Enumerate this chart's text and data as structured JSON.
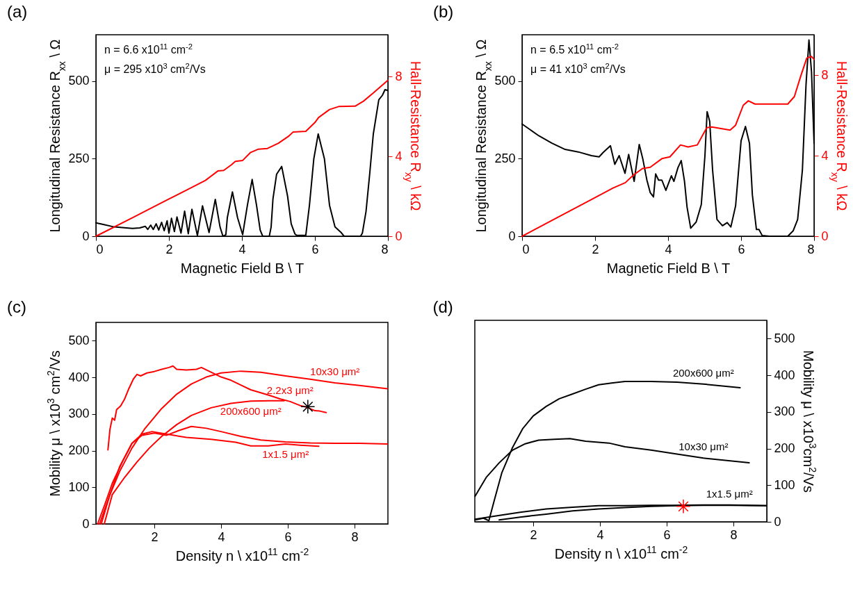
{
  "chart_data": [
    {
      "type": "line",
      "title": "(a)",
      "xlabel": "Magnetic Field B \\ T",
      "xlim": [
        0,
        8
      ],
      "xticks": [
        0,
        2,
        4,
        6,
        8
      ],
      "ylabel": "Longitudinal Resistance R$_{xx}$ \\ Ω",
      "ylim": [
        0,
        650
      ],
      "yticks": [
        0,
        250,
        500
      ],
      "y2label": "Hall-Resistance R$_{xy}$ \\ kΩ",
      "y2lim": [
        0,
        10.1
      ],
      "y2ticks": [
        0,
        4,
        8
      ],
      "annotations": [
        "n = 6.6 x10$^{11}$ cm$^{-2}$",
        "μ = 295 x10$^{3}$ cm$^{2}$/Vs"
      ],
      "series": [
        {
          "color": "#000000",
          "x": [
            0,
            0.2,
            0.5,
            1.0,
            1.2,
            1.35,
            1.42,
            1.5,
            1.57,
            1.65,
            1.72,
            1.8,
            1.87,
            1.95,
            2.0,
            2.07,
            2.15,
            2.22,
            2.33,
            2.43,
            2.53,
            2.63,
            2.78,
            2.92,
            3.1,
            3.27,
            3.4,
            3.48,
            3.56,
            3.6,
            3.74,
            3.88,
            4.02,
            4.15,
            4.28,
            4.4,
            4.5,
            4.57,
            4.75,
            4.8,
            4.85,
            4.95,
            5.09,
            5.25,
            5.35,
            5.45,
            5.5,
            5.75,
            5.85,
            5.97,
            6.09,
            6.26,
            6.4,
            6.55,
            6.71,
            6.8,
            7.25,
            7.3,
            7.4,
            7.5,
            7.6,
            7.75,
            7.85,
            7.92,
            8.0
          ],
          "values": [
            43,
            38,
            30,
            25,
            27,
            32,
            22,
            36,
            22,
            40,
            20,
            45,
            18,
            50,
            10,
            58,
            15,
            62,
            10,
            81,
            8,
            87,
            2,
            98,
            12,
            119,
            30,
            0,
            5,
            60,
            143,
            60,
            5,
            100,
            183,
            100,
            20,
            0,
            0,
            30,
            120,
            200,
            225,
            130,
            40,
            8,
            3,
            3,
            100,
            250,
            330,
            250,
            100,
            30,
            13,
            0,
            0,
            10,
            80,
            200,
            330,
            440,
            455,
            473,
            470
          ]
        },
        {
          "color": "#ff0000",
          "axis": "y2",
          "x": [
            0,
            1,
            2,
            2.5,
            3.0,
            3.34,
            3.5,
            3.71,
            3.82,
            4.02,
            4.23,
            4.44,
            4.7,
            5.0,
            5.27,
            5.4,
            5.75,
            6.0,
            6.1,
            6.4,
            6.65,
            7.1,
            7.33,
            7.6,
            8
          ],
          "values": [
            0,
            0.93,
            1.87,
            2.33,
            2.8,
            3.27,
            3.3,
            3.58,
            3.75,
            3.8,
            4.19,
            4.36,
            4.4,
            4.66,
            5.0,
            5.22,
            5.26,
            5.7,
            5.95,
            6.35,
            6.5,
            6.52,
            6.77,
            7.18,
            7.82
          ]
        }
      ]
    },
    {
      "type": "line",
      "title": "(b)",
      "xlabel": "Magnetic Field B \\ T",
      "xlim": [
        0,
        8
      ],
      "xticks": [
        0,
        2,
        4,
        6,
        8
      ],
      "ylabel": "Longitudinal Resistance R$_{xx}$ \\ Ω",
      "ylim": [
        0,
        650
      ],
      "yticks": [
        0,
        250,
        500
      ],
      "y2label": "Hall-Resistance R$_{xy}$ \\ kΩ",
      "y2lim": [
        0,
        10
      ],
      "y2ticks": [
        0,
        4,
        8
      ],
      "annotations": [
        "n = 6.5 x10$^{11}$ cm$^{-2}$",
        "μ = 41 x10$^{3}$ cm$^{2}$/Vs"
      ],
      "series": [
        {
          "color": "#000000",
          "x": [
            0,
            0.46,
            0.82,
            1.18,
            1.54,
            1.9,
            2.11,
            2.22,
            2.42,
            2.54,
            2.66,
            2.82,
            2.92,
            3.07,
            3.21,
            3.31,
            3.42,
            3.51,
            3.6,
            3.66,
            3.74,
            3.83,
            3.94,
            4.09,
            4.16,
            4.27,
            4.36,
            4.45,
            4.52,
            4.62,
            4.77,
            4.91,
            5.01,
            5.07,
            5.14,
            5.22,
            5.34,
            5.49,
            5.62,
            5.72,
            5.85,
            6.0,
            6.12,
            6.23,
            6.31,
            6.42,
            6.49,
            6.58,
            6.78,
            7.28,
            7.43,
            7.55,
            7.68,
            7.78,
            7.86,
            7.93,
            8.0
          ],
          "values": [
            362,
            324,
            300,
            280,
            272,
            260,
            256,
            270,
            292,
            232,
            260,
            203,
            264,
            177,
            296,
            248,
            181,
            141,
            127,
            201,
            181,
            181,
            148,
            195,
            177,
            221,
            244,
            177,
            94,
            26,
            46,
            102,
            260,
            402,
            371,
            213,
            54,
            34,
            44,
            30,
            98,
            308,
            354,
            300,
            133,
            22,
            22,
            2,
            0,
            0,
            18,
            54,
            213,
            490,
            633,
            530,
            300
          ]
        },
        {
          "color": "#ff0000",
          "axis": "y2",
          "x": [
            0,
            1,
            2,
            2.5,
            2.83,
            3.04,
            3.3,
            3.51,
            3.83,
            4.05,
            4.34,
            4.55,
            4.8,
            5.06,
            5.2,
            5.7,
            5.85,
            6.06,
            6.2,
            6.38,
            7.28,
            7.46,
            7.64,
            7.8,
            7.93,
            8.0
          ],
          "values": [
            0,
            0.96,
            1.92,
            2.4,
            2.66,
            3.02,
            3.36,
            3.42,
            3.85,
            3.94,
            4.53,
            4.43,
            4.53,
            5.39,
            5.42,
            5.27,
            5.51,
            6.5,
            6.72,
            6.56,
            6.56,
            6.93,
            7.98,
            8.84,
            8.92,
            8.78
          ]
        }
      ]
    },
    {
      "type": "line",
      "title": "(c)",
      "xlabel": "Density n \\ x10$^{11}$ cm$^{-2}$",
      "xlim": [
        0.25,
        9
      ],
      "xticks": [
        2,
        4,
        6,
        8
      ],
      "ylabel": "Mobility μ \\ x10$^{3}$ cm$^{2}$/Vs",
      "ylim": [
        0,
        550
      ],
      "yticks": [
        0,
        100,
        200,
        300,
        400,
        500
      ],
      "series": [
        {
          "name": "2.2x3 μm²",
          "color": "#ff0000",
          "x": [
            0.61,
            0.67,
            0.74,
            0.81,
            0.87,
            0.99,
            1.11,
            1.22,
            1.37,
            1.48,
            1.59,
            1.78,
            2.0,
            2.22,
            2.44,
            2.56,
            2.67,
            2.96,
            3.26,
            3.41,
            3.7,
            4.0,
            4.3,
            4.59,
            4.89,
            5.19,
            5.48,
            5.78,
            6.07,
            6.37,
            6.59,
            6.81,
            6.96,
            7.15
          ],
          "values": [
            202,
            258,
            289,
            283,
            312,
            322,
            341,
            366,
            395,
            408,
            404,
            412,
            416,
            422,
            427,
            431,
            422,
            420,
            422,
            427,
            414,
            401,
            392,
            379,
            366,
            358,
            350,
            341,
            334,
            323,
            318,
            309,
            308,
            304
          ]
        },
        {
          "name": "10x30 μm²",
          "color": "#ff0000",
          "x": [
            0.36,
            0.67,
            0.96,
            1.33,
            1.7,
            2.22,
            2.67,
            3.11,
            3.56,
            4.0,
            4.59,
            5.19,
            5.93,
            6.67,
            7.41,
            8.15,
            8.99
          ],
          "values": [
            0,
            80,
            143,
            207,
            258,
            315,
            354,
            382,
            401,
            412,
            417,
            414,
            404,
            395,
            385,
            378,
            369
          ]
        },
        {
          "name": "200x600 μm²",
          "color": "#ff0000",
          "x": [
            0.5,
            0.74,
            1.11,
            1.48,
            1.85,
            2.22,
            2.67,
            3.11,
            3.7,
            4.3,
            4.89,
            5.48,
            5.89
          ],
          "values": [
            0,
            80,
            127,
            169,
            207,
            239,
            271,
            296,
            317,
            329,
            335,
            336,
            336
          ]
        },
        {
          "name": "1x1.5 μm²",
          "color": "#ff0000",
          "x": [
            0.3,
            0.52,
            0.74,
            1.04,
            1.33,
            1.63,
            1.93,
            2.37,
            2.96,
            3.7,
            4.44,
            4.89,
            5.41,
            5.93,
            6.37,
            6.93
          ],
          "values": [
            0,
            54,
            111,
            169,
            220,
            245,
            252,
            245,
            236,
            231,
            223,
            213,
            213,
            218,
            215,
            212
          ]
        },
        {
          "color": "#ff0000",
          "x": [
            0.41,
            0.67,
            0.96,
            1.33,
            1.63,
            2.0,
            2.37,
            2.74,
            3.11,
            3.56,
            4.0,
            4.59,
            5.19,
            5.93,
            6.67,
            7.41,
            8.15,
            8.99
          ],
          "values": [
            0,
            80,
            156,
            220,
            242,
            248,
            242,
            255,
            266,
            261,
            252,
            239,
            229,
            224,
            221,
            220,
            220,
            218
          ]
        },
        {
          "type": "scatter",
          "marker": "cross",
          "color": "#000000",
          "x": [
            6.6
          ],
          "values": [
            320
          ]
        }
      ]
    },
    {
      "type": "line",
      "title": "(d)",
      "xlabel": "Density n \\ x10$^{11}$ cm$^{-2}$",
      "xlim": [
        0.25,
        9
      ],
      "xticks": [
        2,
        4,
        6,
        8
      ],
      "y2label": "Mobility μ \\ x10$^{3}$cm$^{2}$/Vs",
      "y2lim": [
        0,
        550
      ],
      "y2ticks": [
        0,
        100,
        200,
        300,
        400,
        500
      ],
      "series": [
        {
          "name": "200x600 μm²",
          "color": "#000000",
          "axis": "y2",
          "x": [
            0.26,
            0.51,
            0.67,
            0.82,
            1.06,
            1.37,
            1.69,
            2.0,
            2.39,
            2.78,
            3.18,
            3.57,
            3.96,
            4.35,
            4.75,
            5.53,
            6.31,
            7.1,
            7.88,
            8.2
          ],
          "values": [
            5,
            10,
            3,
            54,
            134,
            201,
            255,
            289,
            315,
            336,
            349,
            362,
            374,
            379,
            383,
            383,
            381,
            376,
            369,
            366
          ]
        },
        {
          "name": "10x30 μm²",
          "color": "#000000",
          "axis": "y2",
          "x": [
            0.26,
            0.59,
            0.98,
            1.37,
            1.76,
            2.16,
            2.63,
            3.1,
            3.57,
            4.27,
            4.75,
            5.53,
            6.31,
            7.1,
            8.47
          ],
          "values": [
            70,
            121,
            161,
            195,
            213,
            223,
            225,
            227,
            220,
            215,
            205,
            196,
            185,
            174,
            161
          ]
        },
        {
          "name": "1x1.5 μm²",
          "color": "#000000",
          "axis": "y2",
          "x": [
            0.26,
            0.82,
            1.61,
            2.39,
            3.18,
            3.96,
            4.75,
            5.53,
            6.31,
            7.1,
            7.88,
            9
          ],
          "values": [
            7,
            15,
            26,
            35,
            40,
            44,
            44,
            45,
            45,
            46,
            46,
            44
          ]
        },
        {
          "color": "#000000",
          "axis": "y2",
          "x": [
            0.98,
            1.61,
            2.39,
            3.18,
            3.96,
            4.75,
            5.53,
            6.31,
            7.1,
            7.88,
            9
          ],
          "values": [
            5,
            13,
            21,
            30,
            35,
            39,
            42,
            44,
            45,
            45,
            44
          ]
        },
        {
          "type": "scatter",
          "marker": "cross",
          "axis": "y2",
          "color": "#ff0000",
          "x": [
            6.5
          ],
          "values": [
            42
          ]
        }
      ]
    }
  ]
}
